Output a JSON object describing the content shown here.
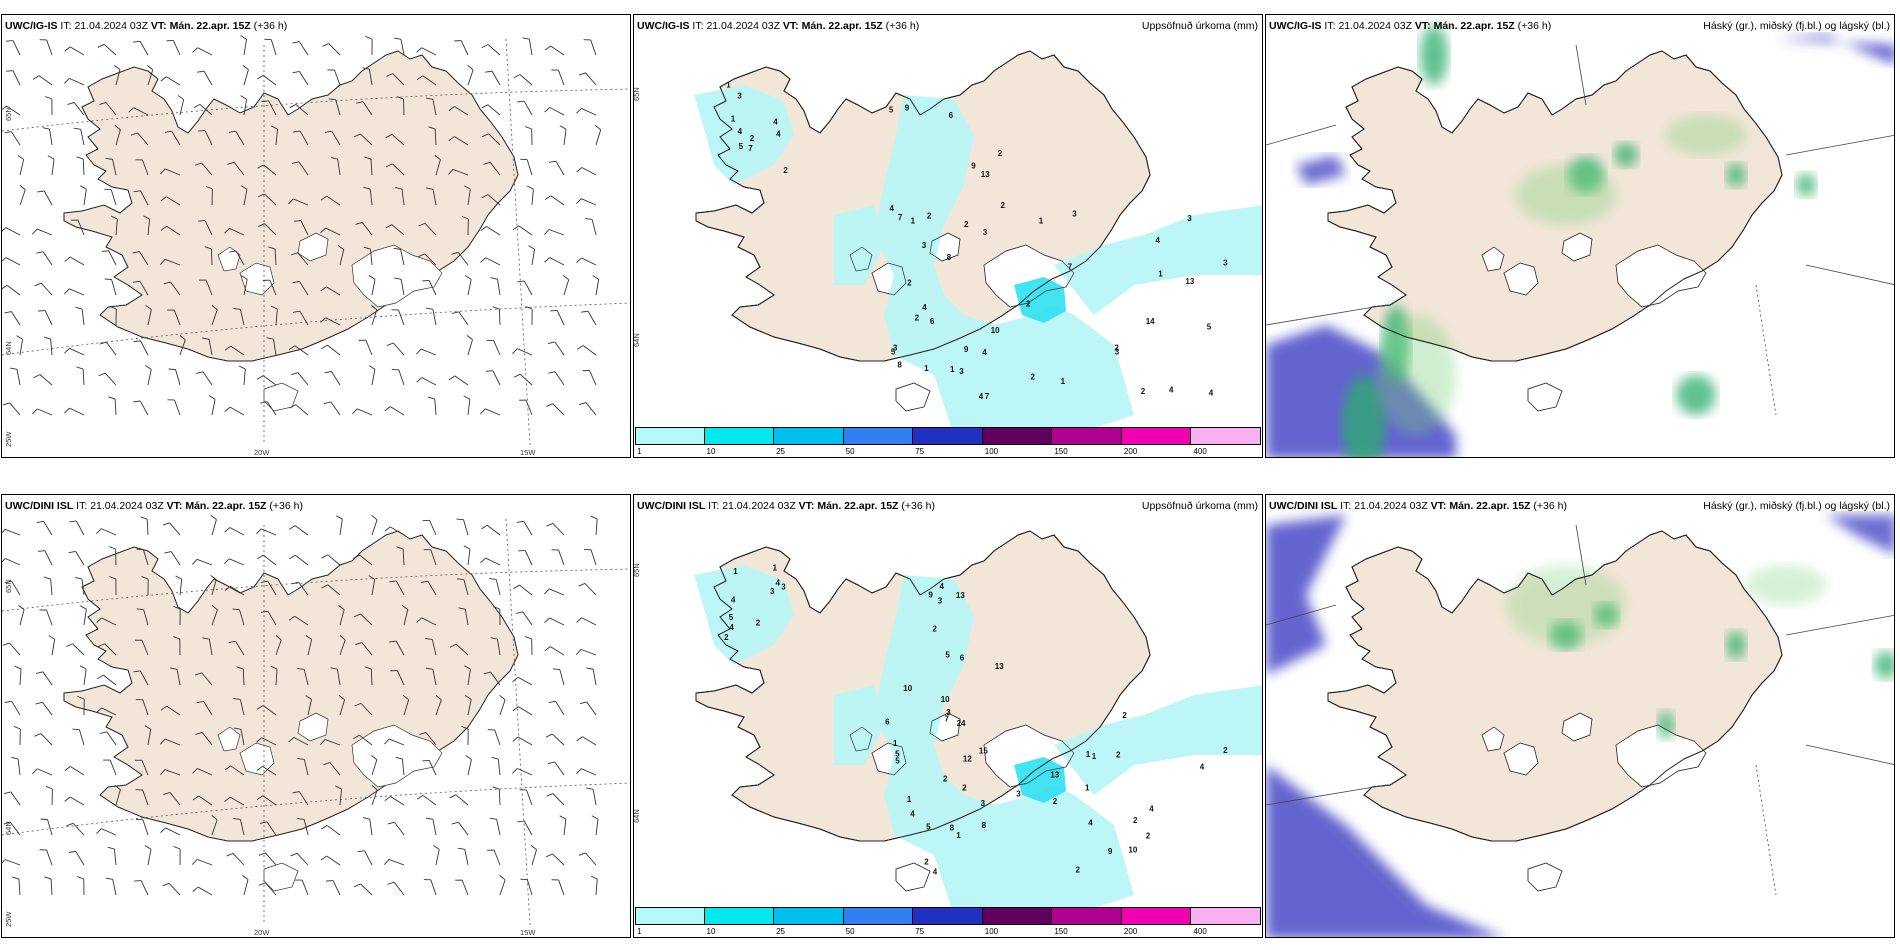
{
  "rows": [
    {
      "model": "UWC/IG-IS",
      "it_label": "IT:",
      "it_value": "21.04.2024 03Z",
      "vt_label": "VT:",
      "vt_value": "Mán. 22.apr. 15Z",
      "lead": "(+36 h)",
      "precip_numbers": [
        "2",
        "1",
        "1",
        "4",
        "2",
        "3",
        "7",
        "4",
        "5",
        "4",
        "3",
        "6",
        "5",
        "4",
        "3",
        "9",
        "8",
        "2",
        "2",
        "2",
        "7",
        "1",
        "3",
        "2",
        "4",
        "2",
        "1",
        "3",
        "13",
        "5",
        "4",
        "6",
        "8",
        "10",
        "9",
        "4",
        "7",
        "9",
        "2",
        "1",
        "2",
        "4",
        "5",
        "4",
        "3",
        "2",
        "2",
        "7",
        "3",
        "4",
        "2",
        "13",
        "14",
        "3",
        "3",
        "1",
        "1",
        "1"
      ],
      "lat_left": [
        "65N",
        "64N",
        "25W"
      ],
      "lon_bottom": [
        "20W",
        "15W"
      ],
      "lat_mid": [
        "65N",
        "64N"
      ]
    },
    {
      "model": "UWC/DINI ISL",
      "it_label": "IT:",
      "it_value": "21.04.2024 03Z",
      "vt_label": "VT:",
      "vt_value": "Mán. 22.apr. 15Z",
      "lead": "(+36 h)",
      "precip_numbers": [
        "2",
        "1",
        "1",
        "4",
        "2",
        "4",
        "5",
        "4",
        "3",
        "3",
        "1",
        "4",
        "2",
        "7",
        "4",
        "9",
        "8",
        "6",
        "1",
        "2",
        "1",
        "3",
        "2",
        "3",
        "10",
        "5",
        "5",
        "13",
        "5",
        "12",
        "10",
        "4",
        "8",
        "2",
        "3",
        "5",
        "13",
        "24",
        "6",
        "15",
        "2",
        "2",
        "9",
        "2",
        "3",
        "13",
        "4",
        "10",
        "4",
        "2",
        "1",
        "2",
        "2",
        "4",
        "1",
        "2",
        "1"
      ],
      "lat_left": [
        "65N",
        "64N",
        "25W"
      ],
      "lon_bottom": [
        "20W",
        "15W"
      ],
      "lat_mid": [
        "65N",
        "64N"
      ]
    }
  ],
  "panel_labels": {
    "precip": "Uppsöfnuð úrkoma (mm)",
    "clouds": "Háský (gr.), miðský (fj.bl.) og lágský (bl.)"
  },
  "colorbar": {
    "ticks": [
      "1",
      "10",
      "25",
      "50",
      "75",
      "100",
      "150",
      "200",
      "400"
    ],
    "colors": [
      "#b3fafa",
      "#00e8f0",
      "#00c0f0",
      "#3080f0",
      "#2030c0",
      "#600060",
      "#b00090",
      "#f000b0",
      "#f8b0f0"
    ]
  },
  "map_colors": {
    "land": "#f2e6d8",
    "ice": "#ffffff",
    "precip_light": "#b8f6f6",
    "precip_mid": "#30e0f0",
    "cloud_low": "#4848c8",
    "cloud_mid": "#78d078",
    "cloud_high": "#2cae6c"
  }
}
